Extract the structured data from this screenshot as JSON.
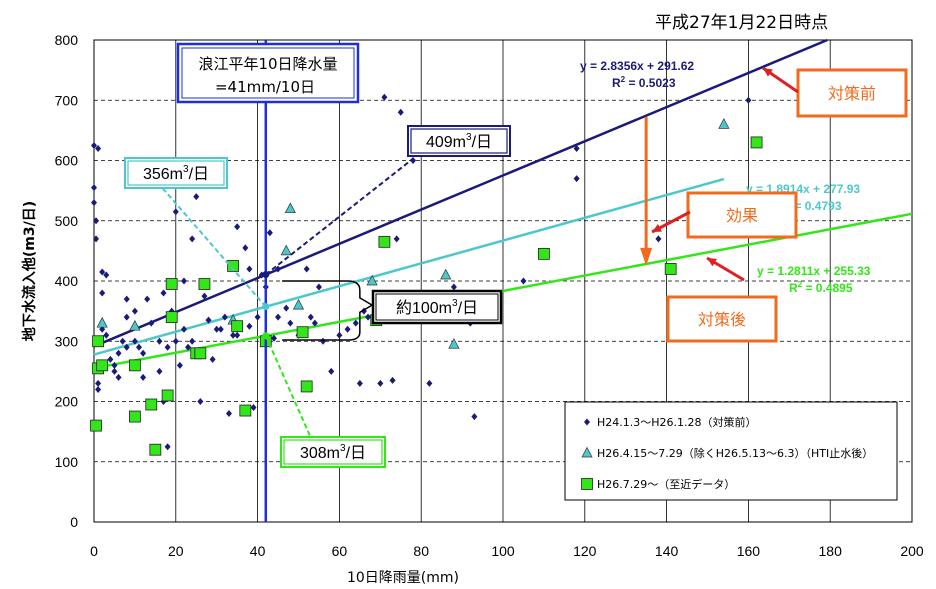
{
  "chart_data": {
    "type": "scatter",
    "date_label": "平成27年1月22日時点",
    "xlabel": "10日降雨量(mm)",
    "ylabel": "地下水流入他(m3/日)",
    "xlim": [
      0,
      200
    ],
    "ylim": [
      0,
      800
    ],
    "x_ticks": [
      "0",
      "20",
      "40",
      "60",
      "80",
      "100",
      "120",
      "140",
      "160",
      "180",
      "200"
    ],
    "y_ticks": [
      "0",
      "100",
      "200",
      "300",
      "400",
      "500",
      "600",
      "700",
      "800"
    ],
    "grid": "horizontal-dashed, vertical-solid",
    "colors": {
      "series1": "#1a1a7a",
      "series2": "#4cc8cc",
      "series3": "#33e61a",
      "trend1": "#1a1a7a",
      "trend2": "#4cc8cc",
      "trend3": "#33e61a",
      "vline": "#1c2fd9",
      "annotation_orange": "#f26a1b",
      "callout_red": "#e02020"
    },
    "series": [
      {
        "name": "H24.1.3～H26.1.28（対策前）",
        "marker": "diamond",
        "points": [
          [
            0,
            625
          ],
          [
            0,
            555
          ],
          [
            0,
            530
          ],
          [
            1,
            620
          ],
          [
            0.5,
            500
          ],
          [
            0.5,
            470
          ],
          [
            1,
            300
          ],
          [
            1,
            230
          ],
          [
            1,
            220
          ],
          [
            2,
            415
          ],
          [
            3,
            410
          ],
          [
            2,
            380
          ],
          [
            2,
            320
          ],
          [
            3,
            310
          ],
          [
            4,
            270
          ],
          [
            5,
            260
          ],
          [
            5,
            250
          ],
          [
            6,
            280
          ],
          [
            6,
            240
          ],
          [
            8,
            370
          ],
          [
            8,
            290
          ],
          [
            8,
            340
          ],
          [
            7,
            300
          ],
          [
            10,
            350
          ],
          [
            10,
            300
          ],
          [
            11,
            290
          ],
          [
            12,
            280
          ],
          [
            12,
            240
          ],
          [
            13,
            370
          ],
          [
            14,
            330
          ],
          [
            16,
            300
          ],
          [
            16,
            250
          ],
          [
            17,
            380
          ],
          [
            17,
            200
          ],
          [
            18,
            290
          ],
          [
            18,
            125
          ],
          [
            19,
            350
          ],
          [
            20,
            515
          ],
          [
            20,
            300
          ],
          [
            21,
            260
          ],
          [
            22,
            320
          ],
          [
            22,
            400
          ],
          [
            23,
            290
          ],
          [
            24,
            300
          ],
          [
            24,
            470
          ],
          [
            25,
            540
          ],
          [
            26,
            200
          ],
          [
            27,
            375
          ],
          [
            28,
            335
          ],
          [
            29,
            270
          ],
          [
            30,
            320
          ],
          [
            31,
            320
          ],
          [
            32,
            340
          ],
          [
            33,
            180
          ],
          [
            34,
            310
          ],
          [
            35,
            490
          ],
          [
            35,
            310
          ],
          [
            37,
            455
          ],
          [
            38,
            420
          ],
          [
            38,
            325
          ],
          [
            39,
            190
          ],
          [
            40,
            340
          ],
          [
            41,
            410
          ],
          [
            42,
            390
          ],
          [
            43,
            480
          ],
          [
            44,
            305
          ],
          [
            45,
            340
          ],
          [
            45,
            420
          ],
          [
            47,
            355
          ],
          [
            48,
            330
          ],
          [
            50,
            310
          ],
          [
            52,
            420
          ],
          [
            53,
            340
          ],
          [
            54,
            330
          ],
          [
            55,
            390
          ],
          [
            56,
            300
          ],
          [
            58,
            250
          ],
          [
            60,
            310
          ],
          [
            62,
            320
          ],
          [
            64,
            330
          ],
          [
            65,
            230
          ],
          [
            66,
            350
          ],
          [
            67,
            340
          ],
          [
            68,
            400
          ],
          [
            70,
            230
          ],
          [
            71,
            705
          ],
          [
            72,
            370
          ],
          [
            73,
            235
          ],
          [
            74,
            470
          ],
          [
            75,
            680
          ],
          [
            76,
            335
          ],
          [
            78,
            600
          ],
          [
            82,
            230
          ],
          [
            85,
            350
          ],
          [
            88,
            390
          ],
          [
            90,
            335
          ],
          [
            92,
            330
          ],
          [
            93,
            175
          ],
          [
            98,
            365
          ],
          [
            105,
            400
          ],
          [
            118,
            620
          ],
          [
            118,
            570
          ],
          [
            138,
            470
          ],
          [
            160,
            700
          ]
        ]
      },
      {
        "name": "H26.4.15～7.29（除くH26.5.13～6.3）（HTI止水後）",
        "marker": "triangle",
        "points": [
          [
            2,
            330
          ],
          [
            10,
            325
          ],
          [
            34,
            335
          ],
          [
            47,
            450
          ],
          [
            48,
            520
          ],
          [
            50,
            360
          ],
          [
            68,
            400
          ],
          [
            86,
            410
          ],
          [
            88,
            295
          ],
          [
            154,
            660
          ]
        ]
      },
      {
        "name": "H26.7.29～（至近データ）",
        "marker": "square",
        "points": [
          [
            0.5,
            160
          ],
          [
            1,
            255
          ],
          [
            1,
            300
          ],
          [
            2,
            260
          ],
          [
            10,
            260
          ],
          [
            10,
            175
          ],
          [
            14,
            195
          ],
          [
            15,
            120
          ],
          [
            18,
            210
          ],
          [
            19,
            395
          ],
          [
            19,
            340
          ],
          [
            25,
            280
          ],
          [
            26,
            280
          ],
          [
            27,
            395
          ],
          [
            34,
            425
          ],
          [
            35,
            325
          ],
          [
            37,
            185
          ],
          [
            42,
            300
          ],
          [
            52,
            225
          ],
          [
            51,
            315
          ],
          [
            69,
            335
          ],
          [
            71,
            465
          ],
          [
            110,
            445
          ],
          [
            141,
            420
          ],
          [
            162,
            630
          ]
        ]
      }
    ],
    "trendlines": [
      {
        "series": 0,
        "slope": 2.8356,
        "intercept": 291.62,
        "x_range": [
          0,
          180
        ],
        "equation": "y = 2.8356x + 291.62",
        "r2_label": "R",
        "r2_value": " = 0.5023"
      },
      {
        "series": 1,
        "slope": 1.8914,
        "intercept": 277.93,
        "x_range": [
          0,
          154
        ],
        "equation": "y = 1.8914x + 277.93",
        "r2_label": "R",
        "r2_value": " = 0.4793"
      },
      {
        "series": 2,
        "slope": 1.2811,
        "intercept": 255.33,
        "x_range": [
          0,
          200
        ],
        "equation": "y = 1.2811x + 255.33",
        "r2_label": "R",
        "r2_value": " = 0.4895"
      }
    ],
    "vline": {
      "x": 42,
      "label_line1": "浪江平年10日降水量",
      "label_line2": "=41mm/10日"
    },
    "annotations": {
      "before_label": "対策前",
      "effect_label": "効果",
      "after_label": "対策後",
      "val409": "409m",
      "val356": "356m",
      "val308": "308m",
      "unit_sup": "3",
      "unit_day": "/日",
      "diff_label": "約100m",
      "brace_unit": "3/日"
    }
  }
}
